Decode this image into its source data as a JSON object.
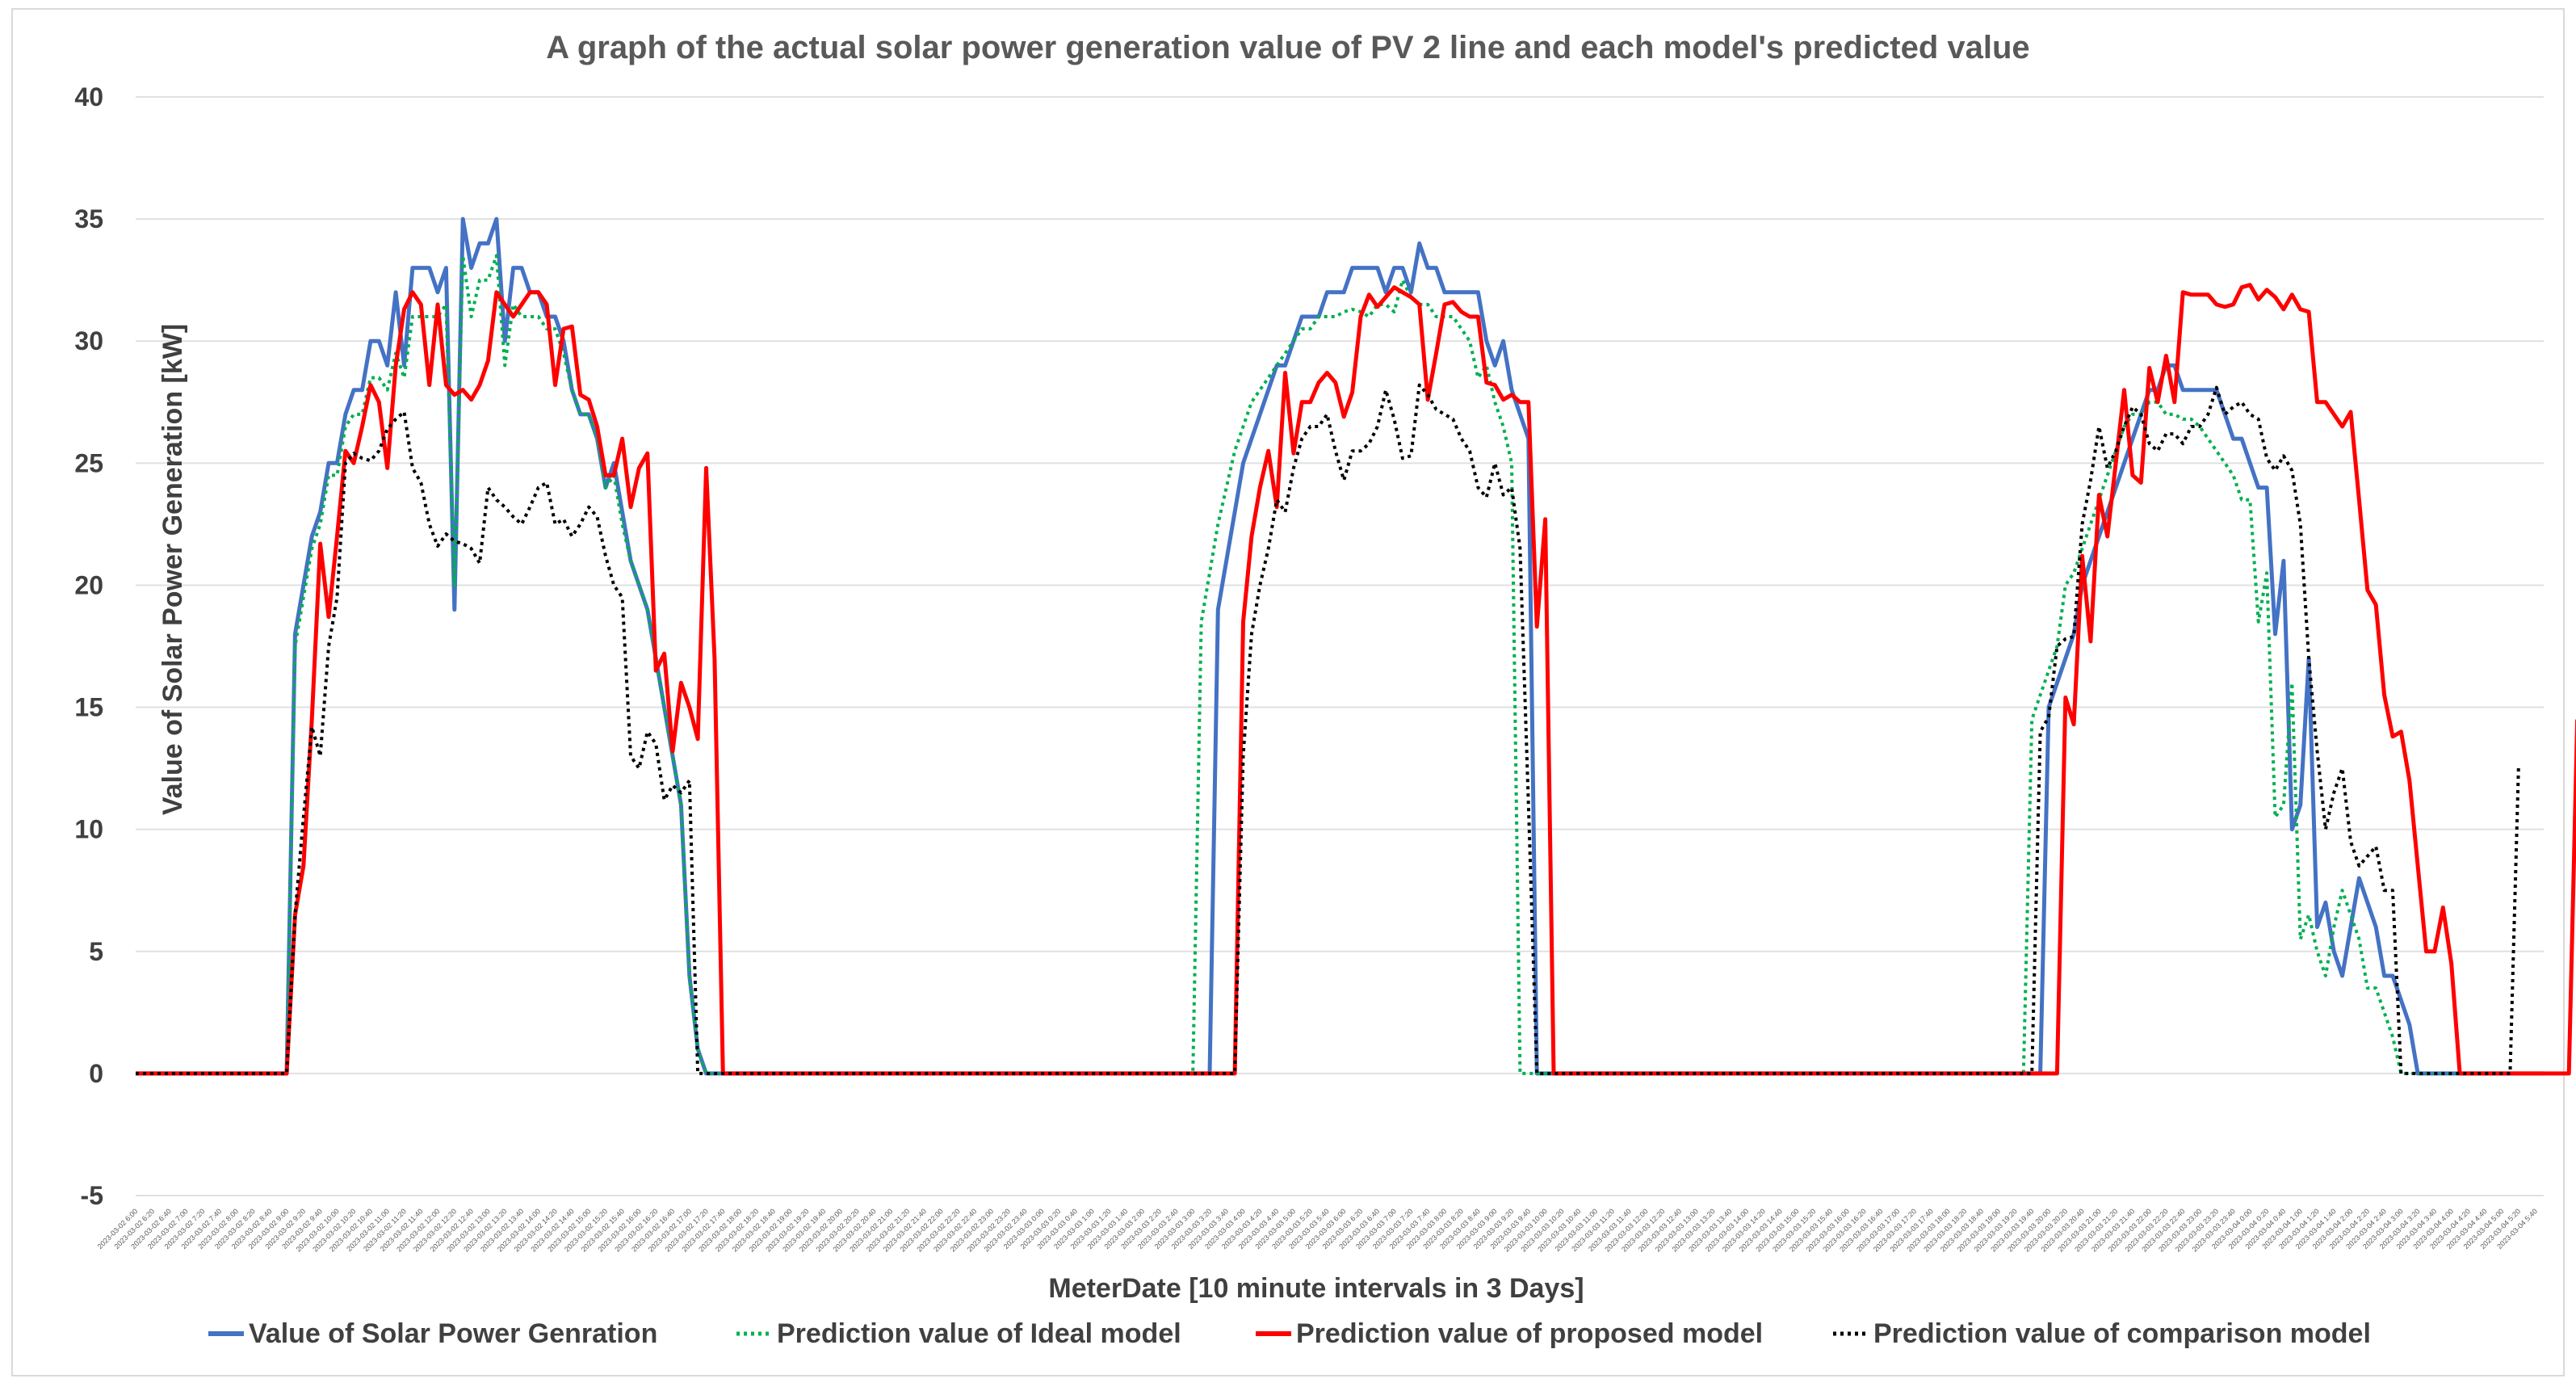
{
  "chart_data": {
    "type": "line",
    "title": "A graph of the actual solar power generation value of PV 2 line and each model's predicted value",
    "xlabel": "MeterDate [10 minute intervals in 3 Days]",
    "ylabel": "Value of Solar Power Generation [kW]",
    "ylim": [
      -5,
      40
    ],
    "yticks": [
      -5,
      0,
      5,
      10,
      15,
      20,
      25,
      30,
      35,
      40
    ],
    "grid": true,
    "legend_position": "bottom",
    "x_start": "2023-03-02 6:00",
    "x_interval": "10 min",
    "series": [
      {
        "name": "Value of Solar Power Genration",
        "color": "#4472c4",
        "style": "solid",
        "values": [
          0,
          0,
          0,
          0,
          0,
          0,
          0,
          0,
          0,
          0,
          0,
          0,
          0,
          0,
          0,
          0,
          0,
          0,
          0,
          18,
          20,
          22,
          23,
          25,
          25,
          27,
          28,
          28,
          30,
          30,
          29,
          32,
          29,
          33,
          33,
          33,
          32,
          33,
          19,
          35,
          33,
          34,
          34,
          35,
          30,
          33,
          33,
          32,
          32,
          31,
          31,
          30,
          28,
          27,
          27,
          26,
          24,
          25,
          23,
          21,
          20,
          19,
          17,
          15,
          13,
          11,
          4,
          1,
          0,
          0,
          0,
          0,
          0,
          0,
          0,
          0,
          0,
          0,
          0,
          0,
          0,
          0,
          0,
          0,
          0,
          0,
          0,
          0,
          0,
          0,
          0,
          0,
          0,
          0,
          0,
          0,
          0,
          0,
          0,
          0,
          0,
          0,
          0,
          0,
          0,
          0,
          0,
          0,
          0,
          0,
          0,
          0,
          0,
          0,
          0,
          0,
          0,
          0,
          0,
          0,
          0,
          0,
          0,
          0,
          0,
          0,
          0,
          0,
          0,
          19,
          21,
          23,
          25,
          26,
          27,
          28,
          29,
          29,
          30,
          31,
          31,
          31,
          32,
          32,
          32,
          33,
          33,
          33,
          33,
          32,
          33,
          33,
          32,
          34,
          33,
          33,
          32,
          32,
          32,
          32,
          32,
          30,
          29,
          30,
          28,
          27,
          26,
          0,
          0,
          0,
          0,
          0,
          0,
          0,
          0,
          0,
          0,
          0,
          0,
          0,
          0,
          0,
          0,
          0,
          0,
          0,
          0,
          0,
          0,
          0,
          0,
          0,
          0,
          0,
          0,
          0,
          0,
          0,
          0,
          0,
          0,
          0,
          0,
          0,
          0,
          0,
          0,
          0,
          0,
          0,
          0,
          0,
          0,
          0,
          0,
          0,
          0,
          0,
          0,
          0,
          0,
          0,
          0,
          0,
          0,
          0,
          0,
          0,
          15,
          16,
          17,
          18,
          20,
          21,
          22,
          23,
          24,
          25,
          26,
          27,
          28,
          28,
          29,
          29,
          28,
          28,
          28,
          28,
          28,
          27,
          26,
          26,
          25,
          24,
          24,
          18,
          21,
          10,
          11,
          17,
          6,
          7,
          5,
          4,
          6,
          8,
          7,
          6,
          4,
          4,
          3,
          2,
          0,
          0,
          0,
          0,
          0,
          0,
          0,
          0,
          0,
          0,
          0,
          0,
          0,
          0,
          0,
          0
        ]
      },
      {
        "name": "Prediction value of Ideal model",
        "color": "#00b050",
        "style": "dotted",
        "values": [
          0,
          0,
          0,
          0,
          0,
          0,
          0,
          0,
          0,
          0,
          0,
          0,
          0,
          0,
          0,
          0,
          0,
          0,
          0,
          17.5,
          19.5,
          21.5,
          22.5,
          24.5,
          24.5,
          26.5,
          27,
          27,
          28.5,
          28.5,
          28,
          29.5,
          28.5,
          31,
          31,
          31,
          31,
          31.5,
          20,
          33.5,
          31,
          32.5,
          32.5,
          33.5,
          29,
          31.5,
          31,
          31,
          31,
          30.5,
          30.5,
          29.5,
          28,
          27,
          27,
          26,
          24,
          24.5,
          22.5,
          21,
          20,
          19,
          17,
          15,
          13,
          11,
          4,
          1,
          0,
          0,
          0,
          0,
          0,
          0,
          0,
          0,
          0,
          0,
          0,
          0,
          0,
          0,
          0,
          0,
          0,
          0,
          0,
          0,
          0,
          0,
          0,
          0,
          0,
          0,
          0,
          0,
          0,
          0,
          0,
          0,
          0,
          0,
          0,
          0,
          0,
          0,
          0,
          0,
          0,
          0,
          0,
          0,
          0,
          0,
          0,
          0,
          0,
          0,
          0,
          0,
          0,
          0,
          0,
          0,
          0,
          0,
          0,
          18.5,
          20.5,
          22.5,
          24,
          25.5,
          26.5,
          27.5,
          28,
          28.5,
          29,
          29.5,
          30,
          30.5,
          30.5,
          31,
          31,
          31,
          31.2,
          31.3,
          31.2,
          31,
          31.5,
          31.5,
          31.2,
          32.5,
          31.8,
          31.5,
          31.5,
          31,
          31,
          31,
          30.5,
          30,
          28.5,
          29,
          27.5,
          26.5,
          25,
          0,
          0,
          0,
          0,
          0,
          0,
          0,
          0,
          0,
          0,
          0,
          0,
          0,
          0,
          0,
          0,
          0,
          0,
          0,
          0,
          0,
          0,
          0,
          0,
          0,
          0,
          0,
          0,
          0,
          0,
          0,
          0,
          0,
          0,
          0,
          0,
          0,
          0,
          0,
          0,
          0,
          0,
          0,
          0,
          0,
          0,
          0,
          0,
          0,
          0,
          0,
          0,
          0,
          0,
          0,
          0,
          0,
          0,
          0,
          0,
          0,
          14.5,
          15.5,
          16.5,
          17.5,
          20,
          20.5,
          21.5,
          22.5,
          23.5,
          24.5,
          25.5,
          26.5,
          27,
          27,
          27.5,
          27.5,
          27,
          27,
          26.8,
          26.8,
          26.5,
          26,
          25.5,
          25,
          24.5,
          23.5,
          23.5,
          18.5,
          20.5,
          10.5,
          11,
          16,
          5.5,
          6.5,
          5,
          4,
          6,
          7.5,
          6.5,
          5.5,
          3.5,
          3.5,
          2.5,
          1.5,
          0,
          0,
          0,
          0,
          0,
          0,
          0,
          0,
          0,
          0,
          0,
          0,
          0,
          0,
          0,
          0
        ]
      },
      {
        "name": "Prediction value of proposed model",
        "color": "#ff0000",
        "style": "solid",
        "values": [
          0,
          0,
          0,
          0,
          0,
          0,
          0,
          0,
          0,
          0,
          0,
          0,
          0,
          0,
          0,
          0,
          0,
          0,
          0,
          6.5,
          8.5,
          14.5,
          21.7,
          18.7,
          22,
          25.5,
          25,
          26.5,
          28.2,
          27.5,
          24.8,
          29,
          31.3,
          32,
          31.5,
          28.2,
          31.5,
          28.2,
          27.8,
          28,
          27.6,
          28.2,
          29.2,
          32,
          31.5,
          31,
          31.5,
          32,
          32,
          31.5,
          28.2,
          30.5,
          30.6,
          27.8,
          27.6,
          26.5,
          24.5,
          24.5,
          26,
          23.2,
          24.8,
          25.4,
          16.5,
          17.2,
          13.2,
          16,
          15,
          13.7,
          24.8,
          17,
          0,
          0,
          0,
          0,
          0,
          0,
          0,
          0,
          0,
          0,
          0,
          0,
          0,
          0,
          0,
          0,
          0,
          0,
          0,
          0,
          0,
          0,
          0,
          0,
          0,
          0,
          0,
          0,
          0,
          0,
          0,
          0,
          0,
          0,
          0,
          0,
          0,
          0,
          0,
          0,
          0,
          0,
          0,
          0,
          0,
          0,
          0,
          0,
          0,
          0,
          0,
          0,
          0,
          0,
          0,
          0,
          0,
          0,
          0,
          0,
          0,
          0,
          18.5,
          22,
          24,
          25.5,
          23.2,
          28.7,
          25.4,
          27.5,
          27.5,
          28.3,
          28.7,
          28.3,
          26.9,
          27.9,
          31,
          31.9,
          31.4,
          31.8,
          32.2,
          32,
          31.8,
          31.5,
          27.6,
          29.5,
          31.5,
          31.6,
          31.2,
          31,
          31,
          28.3,
          28.2,
          27.6,
          27.8,
          27.5,
          27.5,
          18.3,
          22.7,
          0,
          0,
          0,
          0,
          0,
          0,
          0,
          0,
          0,
          0,
          0,
          0,
          0,
          0,
          0,
          0,
          0,
          0,
          0,
          0,
          0,
          0,
          0,
          0,
          0,
          0,
          0,
          0,
          0,
          0,
          0,
          0,
          0,
          0,
          0,
          0,
          0,
          0,
          0,
          0,
          0,
          0,
          0,
          0,
          0,
          0,
          0,
          0,
          0,
          0,
          0,
          0,
          0,
          0,
          0,
          0,
          0,
          0,
          0,
          0,
          0,
          15.4,
          14.3,
          21.2,
          17.7,
          23.7,
          22,
          25,
          28,
          24.5,
          24.2,
          28.9,
          27.5,
          29.4,
          27.5,
          32,
          31.9,
          31.9,
          31.9,
          31.5,
          31.4,
          31.5,
          32.2,
          32.3,
          31.7,
          32.1,
          31.8,
          31.3,
          31.9,
          31.3,
          31.2,
          27.5,
          27.5,
          27,
          26.5,
          27.1,
          23.5,
          19.8,
          19.2,
          15.5,
          13.8,
          14,
          12,
          8.5,
          5,
          5,
          6.8,
          4.5,
          0,
          0,
          0,
          0,
          0,
          0,
          0,
          0,
          0,
          0,
          0,
          0,
          0,
          0,
          14.5
        ]
      },
      {
        "name": "Prediction value of comparison model",
        "color": "#000000",
        "style": "dotted",
        "values": [
          0,
          0,
          0,
          0,
          0,
          0,
          0,
          0,
          0,
          0,
          0,
          0,
          0,
          0,
          0,
          0,
          0,
          0,
          0,
          6.5,
          10.5,
          14.2,
          13,
          17.5,
          19.5,
          25,
          25.4,
          25.2,
          25.1,
          25.5,
          26.4,
          26.8,
          27.1,
          24.8,
          24.2,
          22.5,
          21.6,
          22.1,
          21.8,
          21.7,
          21.5,
          20.9,
          24,
          23.5,
          23.2,
          22.8,
          22.5,
          23.2,
          24,
          24.2,
          22.5,
          22.7,
          22,
          22.5,
          23.2,
          22.8,
          21.2,
          20,
          19.5,
          13,
          12.5,
          14,
          13.5,
          11.2,
          11.8,
          11.5,
          12,
          0,
          0,
          0,
          0,
          0,
          0,
          0,
          0,
          0,
          0,
          0,
          0,
          0,
          0,
          0,
          0,
          0,
          0,
          0,
          0,
          0,
          0,
          0,
          0,
          0,
          0,
          0,
          0,
          0,
          0,
          0,
          0,
          0,
          0,
          0,
          0,
          0,
          0,
          0,
          0,
          0,
          0,
          0,
          0,
          0,
          0,
          0,
          0,
          0,
          0,
          0,
          0,
          0,
          0,
          0,
          0,
          0,
          0,
          0,
          0,
          0,
          0,
          0,
          0,
          0,
          13,
          18,
          20,
          21.5,
          23.5,
          23,
          24.8,
          26,
          26.5,
          26.5,
          27,
          25.5,
          24.3,
          25.5,
          25.5,
          25.8,
          26.5,
          28,
          26.8,
          25.2,
          25.3,
          28.2,
          27.8,
          27.2,
          27,
          26.8,
          26,
          25.5,
          24,
          23.6,
          25,
          23.7,
          24,
          21.5,
          11,
          0,
          0,
          0,
          0,
          0,
          0,
          0,
          0,
          0,
          0,
          0,
          0,
          0,
          0,
          0,
          0,
          0,
          0,
          0,
          0,
          0,
          0,
          0,
          0,
          0,
          0,
          0,
          0,
          0,
          0,
          0,
          0,
          0,
          0,
          0,
          0,
          0,
          0,
          0,
          0,
          0,
          0,
          0,
          0,
          0,
          0,
          0,
          0,
          0,
          0,
          0,
          0,
          0,
          0,
          0,
          0,
          0,
          0,
          0,
          0,
          14,
          14.6,
          17.5,
          17.8,
          17.9,
          22.5,
          24.3,
          26.5,
          24.8,
          25.5,
          26.5,
          27.3,
          27,
          25.8,
          25.5,
          26.2,
          26.2,
          25.8,
          26.5,
          26.5,
          27,
          28.1,
          27,
          27.3,
          27.5,
          27,
          26.8,
          25.2,
          24.7,
          25.3,
          24.7,
          22.5,
          17,
          13.2,
          10,
          11.5,
          12.5,
          9.5,
          8.5,
          8.9,
          9.3,
          7.5,
          7.5,
          0,
          0,
          0,
          0,
          0,
          0,
          0,
          0,
          0,
          0,
          0,
          0,
          0,
          0,
          12.5
        ]
      }
    ]
  }
}
